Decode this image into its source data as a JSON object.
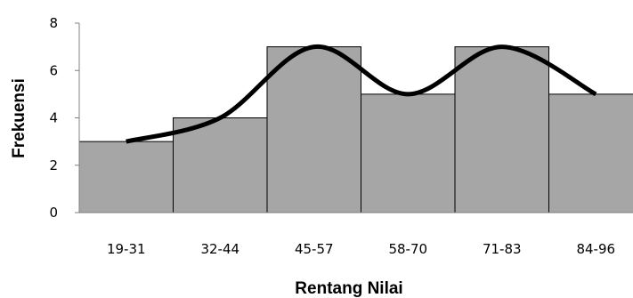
{
  "chart_data": {
    "type": "bar",
    "title": "",
    "xlabel": "Rentang Nilai",
    "ylabel": "Frekuensi",
    "categories": [
      "19-31",
      "32-44",
      "45-57",
      "58-70",
      "71-83",
      "84-96"
    ],
    "values": [
      3,
      4,
      7,
      5,
      7,
      5
    ],
    "ylim": [
      0,
      8
    ],
    "yticks": [
      "0",
      "2",
      "4",
      "6",
      "8"
    ],
    "grid": false,
    "legend": "none",
    "overlay": {
      "type": "smooth-line",
      "values": [
        3,
        4,
        7,
        5,
        7,
        5
      ]
    },
    "colors": {
      "bar_fill": "#a6a6a6",
      "bar_stroke": "#000000",
      "line": "#000000",
      "axis": "#808080"
    }
  }
}
